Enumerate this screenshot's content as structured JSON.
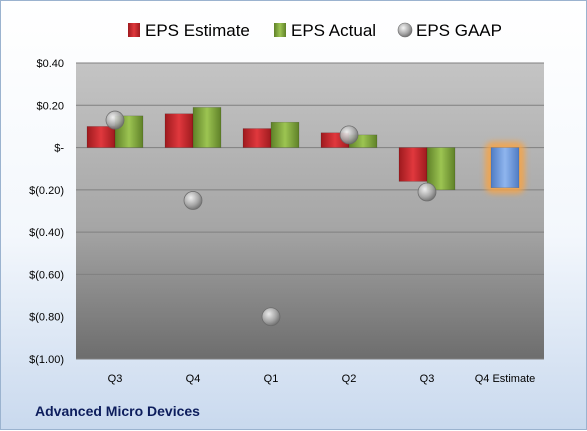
{
  "company": "Advanced Micro Devices",
  "chart_data": {
    "type": "bar",
    "categories": [
      "Q3",
      "Q4",
      "Q1",
      "Q2",
      "Q3",
      "Q4 Estimate"
    ],
    "series": [
      {
        "name": "EPS Estimate",
        "type": "bar",
        "color": "#c0262b",
        "values": [
          0.1,
          0.16,
          0.09,
          0.07,
          -0.16,
          null
        ]
      },
      {
        "name": "EPS Actual",
        "type": "bar",
        "color": "#7ea33c",
        "values": [
          0.15,
          0.19,
          0.12,
          0.06,
          -0.2,
          null
        ]
      },
      {
        "name": "EPS GAAP",
        "type": "scatter",
        "color": "#a9a9a9",
        "values": [
          0.13,
          -0.25,
          -0.8,
          0.06,
          -0.21,
          null
        ]
      }
    ],
    "forecast": {
      "category": "Q4 Estimate",
      "value": -0.19,
      "color": "#6f9be0",
      "glow": "#f5a44a"
    },
    "ylim": [
      -1.0,
      0.4
    ],
    "yticks": [
      0.4,
      0.2,
      0.0,
      -0.2,
      -0.4,
      -0.6,
      -0.8,
      -1.0
    ],
    "ytick_labels": [
      "$0.40",
      "$0.20",
      "$-",
      "$(0.20)",
      "$(0.40)",
      "$(0.60)",
      "$(0.80)",
      "$(1.00)"
    ],
    "legend_position": "top",
    "grid": true
  }
}
